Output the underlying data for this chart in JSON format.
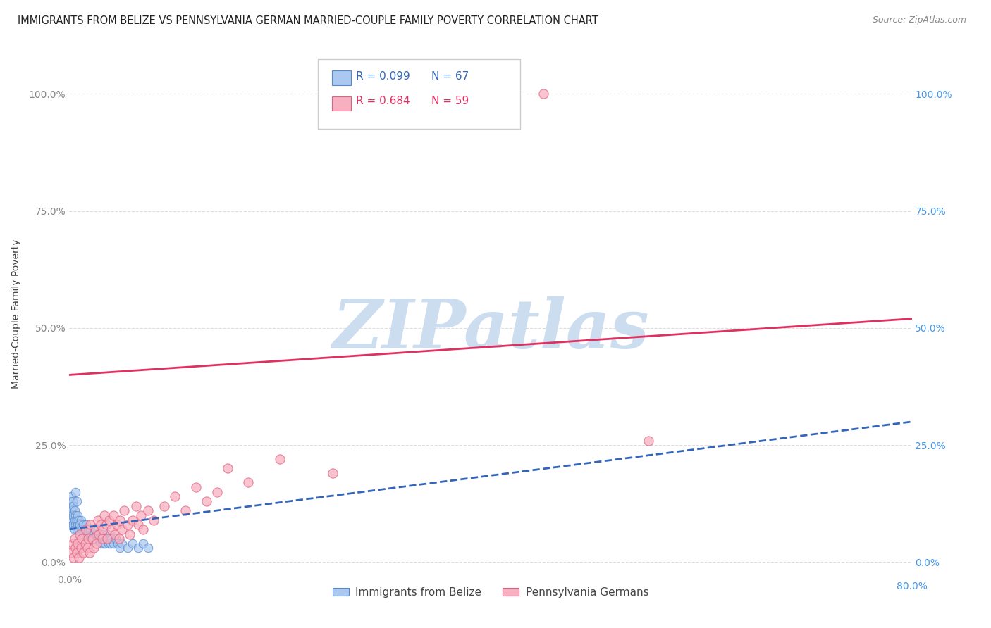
{
  "title": "IMMIGRANTS FROM BELIZE VS PENNSYLVANIA GERMAN MARRIED-COUPLE FAMILY POVERTY CORRELATION CHART",
  "source": "Source: ZipAtlas.com",
  "ylabel": "Married-Couple Family Poverty",
  "xmin": 0.0,
  "xmax": 0.8,
  "ymin": -0.02,
  "ymax": 1.08,
  "yticks": [
    0.0,
    0.25,
    0.5,
    0.75,
    1.0
  ],
  "ytick_labels": [
    "0.0%",
    "25.0%",
    "50.0%",
    "75.0%",
    "100.0%"
  ],
  "xticks": [
    0.0,
    0.1,
    0.2,
    0.3,
    0.4,
    0.5,
    0.6,
    0.7,
    0.8
  ],
  "xtick_labels_left": [
    "0.0%",
    "",
    "",
    "",
    "",
    "",
    "",
    "",
    ""
  ],
  "xtick_labels_right": "80.0%",
  "watermark": "ZIPatlas",
  "legend_R1": "R = 0.099",
  "legend_N1": "N = 67",
  "legend_R2": "R = 0.684",
  "legend_N2": "N = 59",
  "legend_label1": "Immigrants from Belize",
  "legend_label2": "Pennsylvania Germans",
  "belize_color": "#aac8f0",
  "belize_edge_color": "#5588cc",
  "belize_line_color": "#3366bb",
  "pagerman_color": "#f8b0c0",
  "pagerman_edge_color": "#e06080",
  "pagerman_line_color": "#e03060",
  "belize_scatter": [
    [
      0.001,
      0.13
    ],
    [
      0.001,
      0.12
    ],
    [
      0.002,
      0.14
    ],
    [
      0.002,
      0.11
    ],
    [
      0.002,
      0.1
    ],
    [
      0.003,
      0.13
    ],
    [
      0.003,
      0.09
    ],
    [
      0.003,
      0.08
    ],
    [
      0.004,
      0.12
    ],
    [
      0.004,
      0.1
    ],
    [
      0.004,
      0.08
    ],
    [
      0.005,
      0.11
    ],
    [
      0.005,
      0.09
    ],
    [
      0.005,
      0.07
    ],
    [
      0.006,
      0.15
    ],
    [
      0.006,
      0.1
    ],
    [
      0.006,
      0.08
    ],
    [
      0.007,
      0.13
    ],
    [
      0.007,
      0.09
    ],
    [
      0.007,
      0.07
    ],
    [
      0.008,
      0.1
    ],
    [
      0.008,
      0.08
    ],
    [
      0.009,
      0.09
    ],
    [
      0.009,
      0.07
    ],
    [
      0.01,
      0.08
    ],
    [
      0.01,
      0.06
    ],
    [
      0.011,
      0.09
    ],
    [
      0.012,
      0.07
    ],
    [
      0.013,
      0.08
    ],
    [
      0.014,
      0.06
    ],
    [
      0.015,
      0.07
    ],
    [
      0.016,
      0.08
    ],
    [
      0.017,
      0.06
    ],
    [
      0.018,
      0.07
    ],
    [
      0.019,
      0.05
    ],
    [
      0.02,
      0.07
    ],
    [
      0.021,
      0.06
    ],
    [
      0.022,
      0.05
    ],
    [
      0.023,
      0.06
    ],
    [
      0.024,
      0.05
    ],
    [
      0.025,
      0.07
    ],
    [
      0.025,
      0.05
    ],
    [
      0.026,
      0.06
    ],
    [
      0.027,
      0.05
    ],
    [
      0.028,
      0.06
    ],
    [
      0.029,
      0.04
    ],
    [
      0.03,
      0.05
    ],
    [
      0.031,
      0.06
    ],
    [
      0.032,
      0.04
    ],
    [
      0.033,
      0.05
    ],
    [
      0.034,
      0.04
    ],
    [
      0.035,
      0.05
    ],
    [
      0.036,
      0.06
    ],
    [
      0.037,
      0.04
    ],
    [
      0.038,
      0.05
    ],
    [
      0.039,
      0.04
    ],
    [
      0.04,
      0.05
    ],
    [
      0.042,
      0.04
    ],
    [
      0.044,
      0.05
    ],
    [
      0.046,
      0.04
    ],
    [
      0.048,
      0.03
    ],
    [
      0.05,
      0.04
    ],
    [
      0.055,
      0.03
    ],
    [
      0.06,
      0.04
    ],
    [
      0.065,
      0.03
    ],
    [
      0.07,
      0.04
    ],
    [
      0.075,
      0.03
    ]
  ],
  "belize_trend_x": [
    0.0,
    0.8
  ],
  "belize_trend_y": [
    0.07,
    0.3
  ],
  "pagerman_scatter": [
    [
      0.002,
      0.02
    ],
    [
      0.003,
      0.04
    ],
    [
      0.004,
      0.01
    ],
    [
      0.005,
      0.05
    ],
    [
      0.006,
      0.03
    ],
    [
      0.007,
      0.02
    ],
    [
      0.008,
      0.04
    ],
    [
      0.009,
      0.01
    ],
    [
      0.01,
      0.06
    ],
    [
      0.011,
      0.03
    ],
    [
      0.012,
      0.05
    ],
    [
      0.013,
      0.02
    ],
    [
      0.015,
      0.04
    ],
    [
      0.016,
      0.07
    ],
    [
      0.017,
      0.03
    ],
    [
      0.018,
      0.05
    ],
    [
      0.019,
      0.02
    ],
    [
      0.02,
      0.08
    ],
    [
      0.022,
      0.05
    ],
    [
      0.023,
      0.03
    ],
    [
      0.025,
      0.07
    ],
    [
      0.026,
      0.04
    ],
    [
      0.027,
      0.09
    ],
    [
      0.028,
      0.06
    ],
    [
      0.03,
      0.08
    ],
    [
      0.031,
      0.05
    ],
    [
      0.032,
      0.07
    ],
    [
      0.033,
      0.1
    ],
    [
      0.035,
      0.08
    ],
    [
      0.036,
      0.05
    ],
    [
      0.038,
      0.09
    ],
    [
      0.04,
      0.07
    ],
    [
      0.042,
      0.1
    ],
    [
      0.043,
      0.06
    ],
    [
      0.045,
      0.08
    ],
    [
      0.047,
      0.05
    ],
    [
      0.048,
      0.09
    ],
    [
      0.05,
      0.07
    ],
    [
      0.052,
      0.11
    ],
    [
      0.055,
      0.08
    ],
    [
      0.057,
      0.06
    ],
    [
      0.06,
      0.09
    ],
    [
      0.063,
      0.12
    ],
    [
      0.065,
      0.08
    ],
    [
      0.068,
      0.1
    ],
    [
      0.07,
      0.07
    ],
    [
      0.075,
      0.11
    ],
    [
      0.08,
      0.09
    ],
    [
      0.09,
      0.12
    ],
    [
      0.1,
      0.14
    ],
    [
      0.11,
      0.11
    ],
    [
      0.12,
      0.16
    ],
    [
      0.13,
      0.13
    ],
    [
      0.14,
      0.15
    ],
    [
      0.15,
      0.2
    ],
    [
      0.17,
      0.17
    ],
    [
      0.2,
      0.22
    ],
    [
      0.25,
      0.19
    ],
    [
      0.45,
      1.0
    ],
    [
      0.55,
      0.26
    ]
  ],
  "pagerman_trend_x": [
    0.0,
    0.8
  ],
  "pagerman_trend_y": [
    0.4,
    0.52
  ],
  "title_color": "#222222",
  "source_color": "#888888",
  "grid_color": "#dddddd",
  "tick_color_left": "#888888",
  "tick_color_right": "#4499ee",
  "watermark_color": "#ccddf0",
  "background_color": "#ffffff",
  "legend_box_color": "#cccccc",
  "legend_R_color1": "#3366bb",
  "legend_R_color2": "#e03060"
}
